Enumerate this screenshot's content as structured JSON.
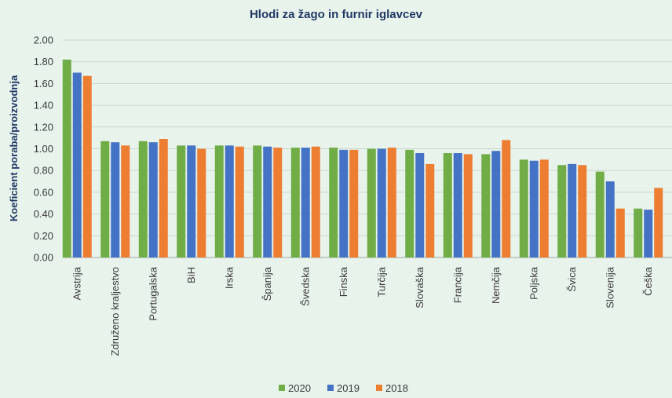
{
  "chart_data": {
    "type": "bar",
    "title": "Hlodi za žago in furnir iglavcev",
    "ylabel": "Koeficient poraba/proizvodnja",
    "xlabel": "",
    "ylim": [
      0,
      2.0
    ],
    "yticks": [
      "0.00",
      "0.20",
      "0.40",
      "0.60",
      "0.80",
      "1.00",
      "1.20",
      "1.40",
      "1.60",
      "1.80",
      "2.00"
    ],
    "grid": true,
    "legend_position": "bottom",
    "categories": [
      "Avstrija",
      "Združeno kraljestvo",
      "Portugalska",
      "BiH",
      "Irska",
      "Španija",
      "Švedska",
      "Finska",
      "Turčija",
      "Slovaška",
      "Francija",
      "Nemčija",
      "Poljska",
      "Švica",
      "Slovenija",
      "Češka"
    ],
    "series": [
      {
        "name": "2020",
        "color": "#70ad47",
        "values": [
          1.82,
          1.07,
          1.07,
          1.03,
          1.03,
          1.03,
          1.01,
          1.01,
          1.0,
          0.99,
          0.96,
          0.95,
          0.9,
          0.85,
          0.79,
          0.45
        ]
      },
      {
        "name": "2019",
        "color": "#4472c4",
        "values": [
          1.7,
          1.06,
          1.06,
          1.03,
          1.03,
          1.02,
          1.01,
          0.99,
          1.0,
          0.96,
          0.96,
          0.98,
          0.89,
          0.86,
          0.7,
          0.44
        ]
      },
      {
        "name": "2018",
        "color": "#ed7d31",
        "values": [
          1.67,
          1.03,
          1.09,
          1.0,
          1.02,
          1.01,
          1.02,
          0.99,
          1.01,
          0.86,
          0.95,
          1.08,
          0.9,
          0.85,
          0.45,
          0.64
        ]
      }
    ]
  }
}
